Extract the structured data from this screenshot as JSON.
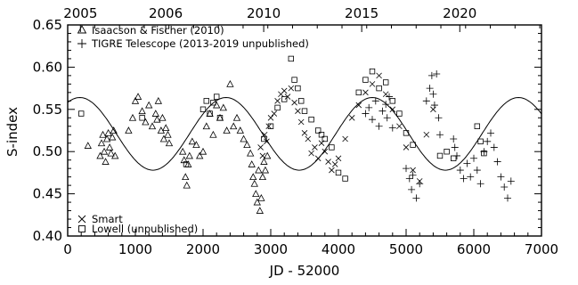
{
  "chart_data": {
    "type": "scatter",
    "title": "",
    "xlabel": "JD - 52000",
    "ylabel": "S-index",
    "xlim": [
      0,
      7000
    ],
    "ylim": [
      0.4,
      0.65
    ],
    "x_ticks": [
      0,
      1000,
      2000,
      3000,
      4000,
      5000,
      6000,
      7000
    ],
    "x_tick_labels": [
      "0",
      "1000",
      "2000",
      "3000",
      "4000",
      "5000",
      "6000",
      "7000"
    ],
    "y_ticks": [
      0.4,
      0.45,
      0.5,
      0.55,
      0.6,
      0.65
    ],
    "y_tick_labels": [
      "0.40",
      "0.45",
      "0.50",
      "0.55",
      "0.60",
      "0.65"
    ],
    "top_axis": {
      "ticks": [
        188,
        1448,
        2896,
        4344,
        5793
      ],
      "labels": [
        "2005",
        "2006",
        "2010",
        "2015",
        "2020"
      ]
    },
    "grid": false,
    "legend_top": [
      {
        "symbol": "triangle",
        "label": "Isaacson & Fischer (2010)"
      },
      {
        "symbol": "plus",
        "label": "TIGRE Telescope (2013-2019 unpublished)"
      }
    ],
    "legend_bottom": [
      {
        "symbol": "cross",
        "label": "Smart"
      },
      {
        "symbol": "square",
        "label": "Lowell (unpublished)"
      }
    ],
    "fit_curve": {
      "type": "sinusoid",
      "mean": 0.521,
      "amplitude": 0.043,
      "period_days": 2160,
      "peak_at": 180,
      "x_range": [
        0,
        7000
      ]
    },
    "series": [
      {
        "name": "Isaacson & Fischer (2010)",
        "marker": "triangle",
        "x": [
          300,
          480,
          500,
          520,
          540,
          560,
          580,
          600,
          620,
          640,
          660,
          680,
          700,
          900,
          960,
          1000,
          1040,
          1100,
          1150,
          1200,
          1250,
          1300,
          1320,
          1340,
          1380,
          1400,
          1420,
          1450,
          1480,
          1500,
          1700,
          1720,
          1740,
          1760,
          1780,
          1800,
          1840,
          1900,
          1950,
          2000,
          2050,
          2100,
          2150,
          2200,
          2250,
          2300,
          2350,
          2400,
          2450,
          2500,
          2550,
          2600,
          2650,
          2700,
          2720,
          2740,
          2760,
          2780,
          2800,
          2820,
          2840,
          2860,
          2880,
          2900,
          2920,
          2950
        ],
        "y": [
          0.507,
          0.495,
          0.51,
          0.52,
          0.5,
          0.488,
          0.515,
          0.522,
          0.505,
          0.498,
          0.517,
          0.525,
          0.495,
          0.525,
          0.54,
          0.56,
          0.565,
          0.548,
          0.535,
          0.555,
          0.53,
          0.545,
          0.538,
          0.56,
          0.525,
          0.54,
          0.515,
          0.528,
          0.52,
          0.51,
          0.5,
          0.49,
          0.47,
          0.46,
          0.485,
          0.495,
          0.512,
          0.508,
          0.495,
          0.5,
          0.53,
          0.545,
          0.52,
          0.555,
          0.54,
          0.552,
          0.525,
          0.58,
          0.53,
          0.54,
          0.525,
          0.515,
          0.508,
          0.498,
          0.485,
          0.47,
          0.462,
          0.45,
          0.44,
          0.478,
          0.43,
          0.445,
          0.47,
          0.488,
          0.478,
          0.495
        ]
      },
      {
        "name": "TIGRE Telescope (2013-2019 unpublished)",
        "marker": "plus",
        "x": [
          4400,
          4450,
          4500,
          4550,
          4600,
          4650,
          4700,
          4720,
          4750,
          4800,
          5000,
          5050,
          5080,
          5100,
          5150,
          5200,
          5300,
          5350,
          5380,
          5400,
          5420,
          5450,
          5480,
          5500,
          5700,
          5720,
          5750,
          5800,
          5850,
          5900,
          5950,
          6000,
          6050,
          6100,
          6150,
          6200,
          6250,
          6300,
          6350,
          6400,
          6450,
          6500,
          6550
        ],
        "y": [
          0.545,
          0.552,
          0.538,
          0.56,
          0.53,
          0.548,
          0.556,
          0.54,
          0.565,
          0.528,
          0.48,
          0.468,
          0.455,
          0.472,
          0.445,
          0.462,
          0.56,
          0.575,
          0.59,
          0.568,
          0.555,
          0.592,
          0.54,
          0.52,
          0.515,
          0.505,
          0.495,
          0.478,
          0.468,
          0.486,
          0.47,
          0.492,
          0.478,
          0.462,
          0.5,
          0.512,
          0.522,
          0.505,
          0.488,
          0.47,
          0.458,
          0.445,
          0.465
        ]
      },
      {
        "name": "Smart",
        "marker": "cross",
        "x": [
          2850,
          2880,
          2910,
          2940,
          2970,
          3000,
          3050,
          3100,
          3150,
          3200,
          3250,
          3300,
          3350,
          3400,
          3450,
          3500,
          3550,
          3600,
          3650,
          3700,
          3750,
          3800,
          3850,
          3900,
          3950,
          4000,
          4100,
          4200,
          4300,
          4400,
          4500,
          4600,
          4700,
          4800,
          4900,
          5000,
          5100,
          5200,
          5300,
          5400
        ],
        "y": [
          0.505,
          0.495,
          0.52,
          0.512,
          0.53,
          0.54,
          0.545,
          0.56,
          0.568,
          0.572,
          0.565,
          0.575,
          0.558,
          0.548,
          0.535,
          0.522,
          0.515,
          0.498,
          0.505,
          0.492,
          0.51,
          0.5,
          0.488,
          0.478,
          0.485,
          0.492,
          0.515,
          0.54,
          0.555,
          0.57,
          0.58,
          0.59,
          0.568,
          0.55,
          0.53,
          0.505,
          0.478,
          0.465,
          0.52,
          0.55
        ]
      },
      {
        "name": "Lowell (unpublished)",
        "marker": "square",
        "x": [
          200,
          1100,
          1750,
          2000,
          2050,
          2100,
          2150,
          2200,
          2250,
          2900,
          3000,
          3100,
          3200,
          3300,
          3350,
          3400,
          3450,
          3500,
          3600,
          3700,
          3750,
          3800,
          3900,
          4000,
          4100,
          4300,
          4400,
          4500,
          4600,
          4700,
          4800,
          4900,
          5000,
          5100,
          5500,
          5600,
          5700,
          6050,
          6100,
          6150
        ],
        "y": [
          0.545,
          0.54,
          0.485,
          0.55,
          0.56,
          0.545,
          0.558,
          0.565,
          0.54,
          0.515,
          0.53,
          0.552,
          0.562,
          0.61,
          0.585,
          0.575,
          0.56,
          0.548,
          0.538,
          0.525,
          0.52,
          0.515,
          0.505,
          0.475,
          0.468,
          0.57,
          0.585,
          0.595,
          0.575,
          0.582,
          0.56,
          0.545,
          0.522,
          0.508,
          0.495,
          0.5,
          0.492,
          0.53,
          0.512,
          0.498
        ]
      }
    ]
  }
}
